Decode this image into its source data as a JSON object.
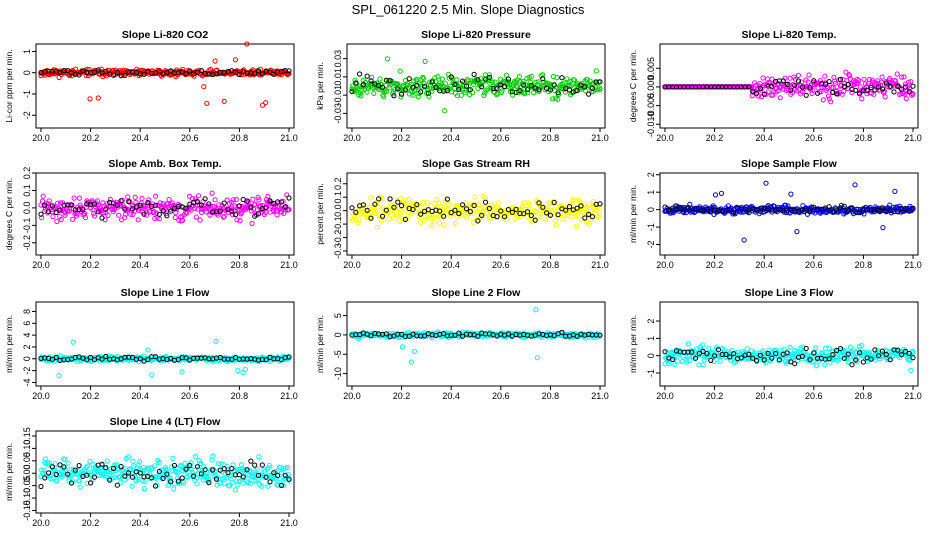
{
  "figure": {
    "title": "SPL_061220  2.5 Min. Slope Diagnostics"
  },
  "x_axis": {
    "ticks": [
      20.0,
      20.2,
      20.4,
      20.6,
      20.8,
      21.0
    ],
    "labels": [
      "20.0",
      "20.2",
      "20.4",
      "20.6",
      "20.8",
      "21.0"
    ],
    "xlim": [
      19.98,
      21.02
    ]
  },
  "chart_data": [
    {
      "type": "scatter",
      "title": "Slope Li-820 CO2",
      "ylabel": "Li-cor ppm per min.",
      "color": "#ff0000",
      "overlay_color": "#000000",
      "ylim": [
        -2.6,
        1.35
      ],
      "yticks": [
        -2,
        -1,
        0,
        1
      ],
      "ytick_labels": [
        "-2",
        "-1",
        "0",
        "1"
      ],
      "n_points": 330,
      "spread": 0.14,
      "outlier_rate": 0.015,
      "outlier_extent": 1.1,
      "late_outliers": true,
      "seed": 11
    },
    {
      "type": "scatter",
      "title": "Slope Li-820 Pressure",
      "ylabel": "kPa per min.",
      "color": "#00cc00",
      "overlay_color": "#000000",
      "ylim": [
        -0.046,
        0.046
      ],
      "yticks": [
        -0.03,
        -0.01,
        0.01,
        0.03
      ],
      "ytick_labels": [
        "-0.03",
        "-0.01",
        "0.01",
        "0.03"
      ],
      "n_points": 330,
      "spread": 0.011,
      "outlier_rate": 0.02,
      "outlier_extent": 0.02,
      "late_outliers": false,
      "seed": 23
    },
    {
      "type": "scatter",
      "title": "Slope Li-820 Temp.",
      "ylabel": "degrees C per min.",
      "color": "#ff00ff",
      "overlay_color": "#000000",
      "ylim": [
        -0.011,
        0.0115
      ],
      "yticks": [
        -0.01,
        -0.005,
        0.0,
        0.005
      ],
      "ytick_labels": [
        "-0.010",
        "-0.005",
        "0.000",
        "0.005"
      ],
      "n_points": 330,
      "spread": 0.0028,
      "outlier_rate": 0.01,
      "outlier_extent": 0.004,
      "late_outliers": false,
      "flat_until": 20.35,
      "seed": 37
    },
    {
      "type": "scatter",
      "title": "Slope Amb. Box Temp.",
      "ylabel": "degrees C per min.",
      "color": "#ff00ff",
      "overlay_color": "#000000",
      "ylim": [
        -0.27,
        0.2
      ],
      "yticks": [
        -0.2,
        -0.1,
        0.0,
        0.1,
        0.2
      ],
      "ytick_labels": [
        "-0.2",
        "-0.1",
        "0.0",
        "0.1",
        "0.2"
      ],
      "n_points": 330,
      "spread": 0.055,
      "outlier_rate": 0.02,
      "outlier_extent": 0.06,
      "late_outliers": false,
      "seed": 41
    },
    {
      "type": "scatter",
      "title": "Slope Gas Stream RH",
      "ylabel": "percent per min.",
      "color": "#ffff00",
      "overlay_color": "#000000",
      "ylim": [
        -0.33,
        0.28
      ],
      "yticks": [
        -0.3,
        -0.2,
        -0.1,
        0.0,
        0.1,
        0.2
      ],
      "ytick_labels": [
        "-0.3",
        "-0.2",
        "-0.1",
        "0.0",
        "0.1",
        "0.2"
      ],
      "n_points": 330,
      "spread": 0.085,
      "outlier_rate": 0.02,
      "outlier_extent": 0.08,
      "late_outliers": false,
      "seed": 53
    },
    {
      "type": "scatter",
      "title": "Slope Sample Flow",
      "ylabel": "ml/min per min.",
      "color": "#0000ff",
      "overlay_color": "#000000",
      "ylim": [
        -2.6,
        2.1
      ],
      "yticks": [
        -2,
        -1,
        0,
        1,
        2
      ],
      "ytick_labels": [
        "-2",
        "-1",
        "0",
        "1",
        "2"
      ],
      "n_points": 330,
      "spread": 0.2,
      "outlier_rate": 0.025,
      "outlier_extent": 1.2,
      "late_outliers": false,
      "seed": 67
    },
    {
      "type": "scatter",
      "title": "Slope Line 1 Flow",
      "ylabel": "ml/min per min.",
      "color": "#00ffff",
      "overlay_color": "#000000",
      "ylim": [
        -4.6,
        9.6
      ],
      "yticks": [
        -4,
        -2,
        0,
        2,
        4,
        6,
        8
      ],
      "ytick_labels": [
        "-4",
        "-2",
        "0",
        "2",
        "4",
        "6",
        "8"
      ],
      "n_points": 330,
      "spread": 0.35,
      "outlier_rate": 0.015,
      "outlier_extent": 2.5,
      "late_outliers": false,
      "seed": 71
    },
    {
      "type": "scatter",
      "title": "Slope Line 2 Flow",
      "ylabel": "ml/min per min.",
      "color": "#00ffff",
      "overlay_color": "#000000",
      "ylim": [
        -13.2,
        8.5
      ],
      "yticks": [
        -10,
        -5,
        0,
        5
      ],
      "ytick_labels": [
        "-10",
        "-5",
        "0",
        "5"
      ],
      "n_points": 330,
      "spread": 0.55,
      "outlier_rate": 0.015,
      "outlier_extent": 6.0,
      "late_outliers": false,
      "seed": 83
    },
    {
      "type": "scatter",
      "title": "Slope Line 3 Flow",
      "ylabel": "ml/min per min.",
      "color": "#00ffff",
      "overlay_color": "#000000",
      "ylim": [
        -1.75,
        3.1
      ],
      "yticks": [
        -1,
        0,
        1,
        2
      ],
      "ytick_labels": [
        "-1",
        "0",
        "1",
        "2"
      ],
      "n_points": 330,
      "spread": 0.45,
      "outlier_rate": 0.015,
      "outlier_extent": 0.8,
      "late_outliers": false,
      "seed": 97
    },
    {
      "type": "scatter",
      "title": "Slope Line 4 (LT) Flow",
      "ylabel": "ml/min per min.",
      "color": "#00ffff",
      "overlay_color": "#000000",
      "ylim": [
        -0.16,
        0.17
      ],
      "yticks": [
        -0.15,
        -0.1,
        -0.05,
        0.0,
        0.05,
        0.1,
        0.15
      ],
      "ytick_labels": [
        "-0.15",
        "-0.10",
        "-0.05",
        "0.00",
        "0.05",
        "0.10",
        "0.15"
      ],
      "n_points": 330,
      "spread": 0.05,
      "outlier_rate": 0.015,
      "outlier_extent": 0.05,
      "late_outliers": false,
      "seed": 103
    }
  ]
}
